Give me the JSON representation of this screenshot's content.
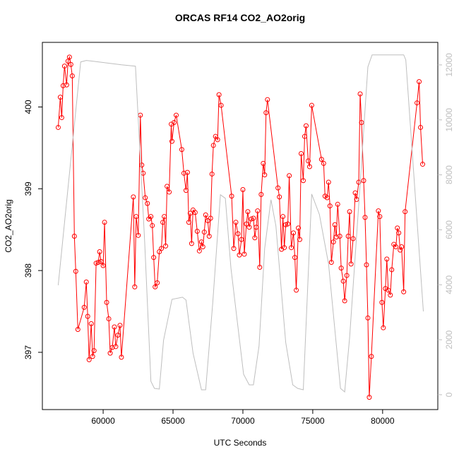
{
  "chart_data": {
    "type": "line",
    "title": "ORCAS RF14 CO2_AO2orig",
    "x_label": "UTC Seconds",
    "y_label": "CO2_AO2orig",
    "xlim": [
      55650,
      83950
    ],
    "xticks": [
      60000,
      65000,
      70000,
      75000,
      80000
    ],
    "ylim": [
      396.3,
      400.79
    ],
    "yticks": [
      397,
      398,
      399,
      400
    ],
    "y2lim": [
      -540,
      12820
    ],
    "y2ticks": [
      0,
      2000,
      4000,
      6000,
      8000,
      10000,
      12000
    ],
    "series": [
      {
        "color": "#ff0000",
        "marker": "circle",
        "x": [
          56784,
          56935,
          57035,
          57136,
          57236,
          57387,
          57487,
          57588,
          57688,
          57789,
          57940,
          58040,
          58191,
          58643,
          58794,
          58894,
          58995,
          59146,
          59246,
          59347,
          59497,
          59648,
          59749,
          59849,
          60000,
          60100,
          60251,
          60402,
          60503,
          60653,
          60804,
          60904,
          61055,
          61206,
          61307,
          62161,
          62261,
          62362,
          62513,
          62663,
          62764,
          62864,
          63015,
          63166,
          63266,
          63417,
          63518,
          63618,
          63719,
          63869,
          64020,
          64171,
          64271,
          64372,
          64472,
          64573,
          64724,
          64874,
          64925,
          65075,
          65226,
          65628,
          65779,
          65930,
          66030,
          66131,
          66231,
          66332,
          66432,
          66583,
          66734,
          66884,
          67035,
          67136,
          67236,
          67337,
          67487,
          67588,
          67688,
          67789,
          67889,
          68040,
          68191,
          68291,
          68442,
          69196,
          69347,
          69497,
          69648,
          69749,
          69899,
          70000,
          70101,
          70251,
          70352,
          70452,
          70603,
          70754,
          70854,
          70955,
          71055,
          71206,
          71307,
          71457,
          71558,
          71658,
          71759,
          72513,
          72613,
          72764,
          72864,
          72965,
          73065,
          73216,
          73317,
          73467,
          73618,
          73719,
          73819,
          73970,
          74070,
          74171,
          74322,
          74422,
          74523,
          74673,
          74774,
          74925,
          75628,
          75779,
          75879,
          76030,
          76131,
          76231,
          76332,
          76482,
          76583,
          76683,
          76784,
          76935,
          77035,
          77186,
          77286,
          77437,
          77538,
          77638,
          77739,
          77889,
          78040,
          78141,
          78291,
          78392,
          78492,
          78643,
          78744,
          78844,
          78945,
          79045,
          79196,
          79698,
          79799,
          79950,
          80050,
          80201,
          80302,
          80402,
          80553,
          80653,
          80804,
          80955,
          81055,
          81156,
          81256,
          81357,
          81508,
          81608,
          82462,
          82613,
          82714,
          82864
        ],
        "values": [
          399.75,
          400.12,
          399.87,
          400.26,
          400.5,
          400.27,
          400.56,
          400.61,
          400.52,
          400.38,
          398.42,
          397.99,
          397.28,
          397.55,
          397.86,
          397.44,
          396.91,
          397.35,
          396.95,
          397.02,
          398.09,
          398.1,
          398.23,
          398.11,
          398.06,
          398.59,
          397.61,
          397.41,
          396.99,
          397.06,
          397.31,
          397.07,
          397.21,
          397.33,
          396.94,
          398.9,
          397.8,
          398.66,
          398.43,
          399.9,
          399.29,
          399.19,
          398.89,
          398.82,
          398.63,
          398.66,
          398.55,
          398.16,
          397.8,
          397.85,
          398.23,
          398.27,
          398.59,
          398.66,
          398.3,
          399.03,
          398.96,
          399.79,
          399.58,
          399.81,
          399.9,
          399.48,
          399.19,
          398.98,
          399.2,
          398.59,
          398.7,
          398.33,
          398.74,
          398.71,
          398.48,
          398.24,
          398.35,
          398.29,
          398.47,
          398.68,
          398.61,
          398.42,
          398.64,
          399.18,
          399.53,
          399.64,
          399.6,
          400.15,
          400.02,
          398.91,
          398.27,
          398.59,
          398.45,
          398.19,
          398.38,
          398.99,
          398.2,
          398.57,
          398.72,
          398.53,
          398.63,
          398.64,
          398.4,
          398.53,
          398.73,
          398.04,
          398.93,
          399.31,
          399.17,
          399.93,
          400.09,
          399.01,
          398.9,
          398.26,
          398.66,
          398.28,
          398.56,
          398.57,
          399.16,
          398.28,
          398.46,
          398.16,
          397.76,
          398.52,
          398.38,
          399.43,
          399.1,
          399.64,
          399.77,
          399.34,
          399.27,
          400.02,
          399.36,
          399.31,
          398.91,
          398.89,
          399.08,
          398.79,
          398.1,
          398.35,
          398.56,
          398.41,
          398.81,
          398.42,
          398.03,
          397.87,
          397.63,
          397.94,
          398.42,
          398.72,
          398.08,
          398.39,
          398.95,
          398.87,
          399.08,
          400.16,
          399.81,
          399.1,
          398.65,
          398.07,
          397.42,
          396.45,
          396.95,
          398.73,
          398.66,
          397.61,
          397.3,
          397.78,
          398.14,
          397.76,
          397.7,
          398.01,
          398.32,
          398.29,
          398.52,
          398.46,
          398.25,
          398.29,
          397.74,
          398.72,
          400.05,
          400.31,
          399.75,
          399.3
        ]
      },
      {
        "color": "#bebebe",
        "axis": "y2",
        "x": [
          56784,
          58392,
          58794,
          59296,
          61307,
          62312,
          62965,
          63417,
          63668,
          64020,
          64322,
          64925,
          65678,
          65930,
          66432,
          67035,
          67337,
          67839,
          68392,
          68744,
          69146,
          70050,
          70452,
          70754,
          71156,
          71558,
          72010,
          72362,
          73065,
          73568,
          73920,
          74322,
          74925,
          75477,
          76131,
          76985,
          77286,
          77638,
          78291,
          78945,
          79246,
          81508,
          81658,
          82312,
          82915
        ],
        "values": [
          3985,
          12108,
          12160,
          12134,
          12005,
          11954,
          5630,
          488,
          231,
          206,
          1980,
          3470,
          3548,
          3445,
          1517,
          180,
          180,
          3316,
          7275,
          7147,
          4602,
          746,
          360,
          360,
          1774,
          5321,
          7095,
          6144,
          1902,
          360,
          231,
          180,
          7301,
          6555,
          4756,
          231,
          103,
          2082,
          6915,
          11928,
          12365,
          12365,
          12185,
          7429,
          3033
        ]
      }
    ]
  }
}
